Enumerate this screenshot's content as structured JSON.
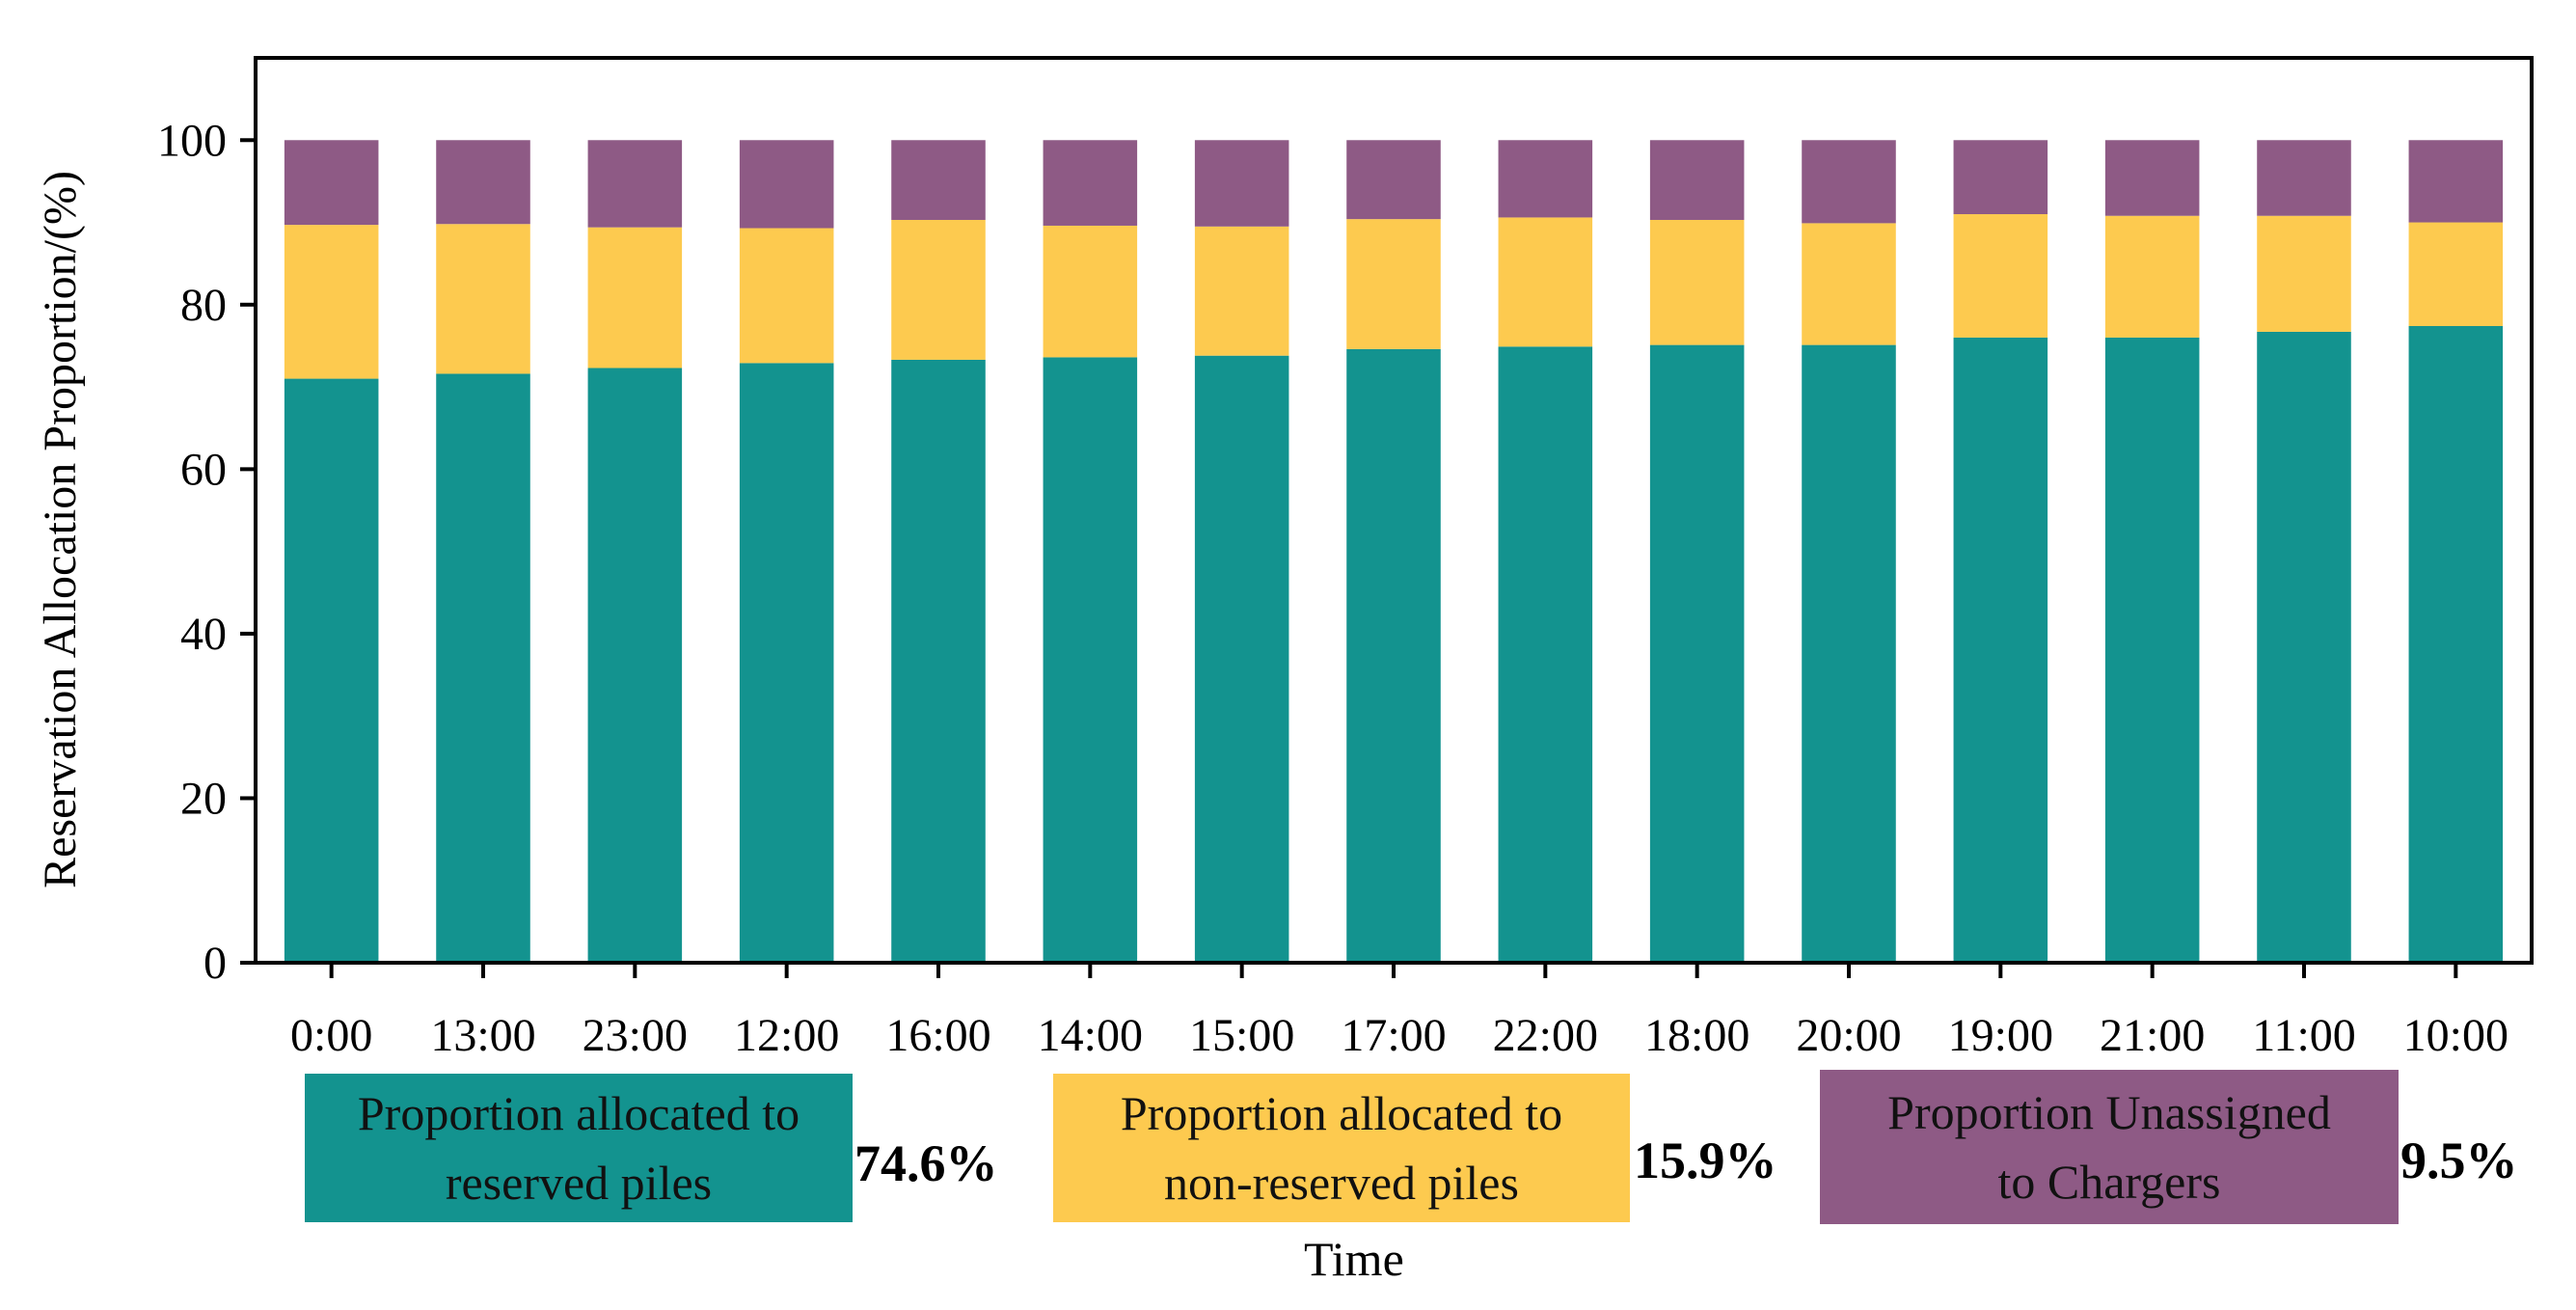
{
  "chart_data": {
    "type": "bar",
    "stacked": true,
    "title": "",
    "xlabel": "Time",
    "ylabel": "Reservation Allocation Proportion/(%)",
    "ylim": [
      0,
      110
    ],
    "yticks": [
      0,
      20,
      40,
      60,
      80,
      100
    ],
    "grid": false,
    "categories": [
      "0:00",
      "13:00",
      "23:00",
      "12:00",
      "16:00",
      "14:00",
      "15:00",
      "17:00",
      "22:00",
      "18:00",
      "20:00",
      "19:00",
      "21:00",
      "11:00",
      "10:00"
    ],
    "series": [
      {
        "name": "Proportion allocated to reserved piles",
        "color": "#13938f",
        "values": [
          71.0,
          71.6,
          72.3,
          72.9,
          73.3,
          73.6,
          73.8,
          74.6,
          74.9,
          75.1,
          75.1,
          76.0,
          76.0,
          76.7,
          77.4
        ]
      },
      {
        "name": "Proportion allocated to non-reserved piles",
        "color": "#fdca4f",
        "values": [
          18.7,
          18.2,
          17.1,
          16.4,
          17.0,
          16.0,
          15.7,
          15.8,
          15.7,
          15.2,
          14.8,
          15.0,
          14.8,
          14.1,
          12.6
        ]
      },
      {
        "name": "Proportion Unassigned to Chargers",
        "color": "#8e5a85",
        "values": [
          10.3,
          10.2,
          10.6,
          10.7,
          9.7,
          10.4,
          10.5,
          9.6,
          9.4,
          9.7,
          10.1,
          9.0,
          9.2,
          9.2,
          10.0
        ]
      }
    ]
  },
  "legend": [
    {
      "line1": "Proportion allocated to",
      "line2": "reserved piles",
      "percent": "74.6%",
      "color": "#13938f"
    },
    {
      "line1": "Proportion allocated to",
      "line2": "non-reserved piles",
      "percent": "15.9%",
      "color": "#fdca4f"
    },
    {
      "line1": "Proportion Unassigned",
      "line2": "to Chargers",
      "percent": "9.5%",
      "color": "#8e5a85"
    }
  ]
}
